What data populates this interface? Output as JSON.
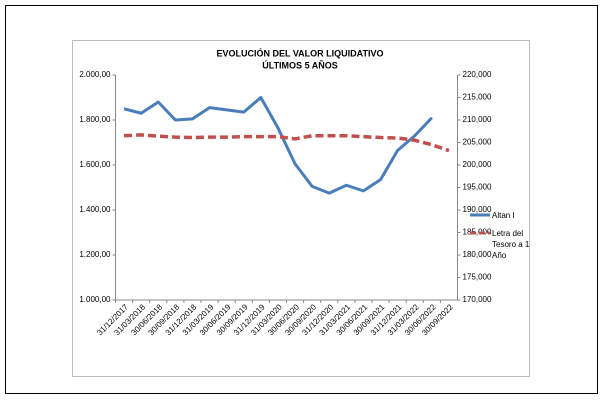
{
  "chart_data": {
    "type": "line",
    "title": "EVOLUCIÓN DEL VALOR LIQUIDATIVO",
    "subtitle": "ÚLTIMOS 5 AÑOS",
    "categories": [
      "31/12/2017",
      "31/03/2018",
      "30/06/2018",
      "30/09/2018",
      "31/12/2018",
      "31/03/2019",
      "30/06/2019",
      "30/09/2019",
      "31/12/2019",
      "31/03/2020",
      "30/06/2020",
      "30/09/2020",
      "31/12/2020",
      "31/03/2021",
      "30/06/2021",
      "30/09/2021",
      "31/12/2021",
      "31/03/2022",
      "30/06/2022",
      "30/09/2022"
    ],
    "series": [
      {
        "name": "Altan I",
        "color": "#4a7ebb",
        "axis": "y",
        "dashed": false,
        "values": [
          1850,
          1830,
          1880,
          1800,
          1805,
          1855,
          1845,
          1835,
          1900,
          1765,
          1605,
          1505,
          1475,
          1510,
          1485,
          1535,
          1665,
          1730,
          1810,
          null
        ]
      },
      {
        "name": "Letra del Tesoro a 1 Año",
        "color": "#c0504d",
        "axis": "y2",
        "dashed": true,
        "values": [
          206500,
          206700,
          206400,
          206200,
          206100,
          206200,
          206200,
          206300,
          206300,
          206300,
          205800,
          206500,
          206500,
          206500,
          206300,
          206100,
          206000,
          205500,
          204500,
          203200
        ]
      }
    ],
    "ylim": [
      1000,
      2000
    ],
    "yticks": [
      {
        "value": 1000,
        "label": "1.000,00"
      },
      {
        "value": 1200,
        "label": "1.200,00"
      },
      {
        "value": 1400,
        "label": "1.400,00"
      },
      {
        "value": 1600,
        "label": "1.600,00"
      },
      {
        "value": 1800,
        "label": "1.800,00"
      },
      {
        "value": 2000,
        "label": "2.000,00"
      }
    ],
    "y2lim": [
      170000,
      220000
    ],
    "y2ticks": [
      {
        "value": 170000,
        "label": "170,000"
      },
      {
        "value": 175000,
        "label": "175,000"
      },
      {
        "value": 180000,
        "label": "180,000"
      },
      {
        "value": 185000,
        "label": "185,000"
      },
      {
        "value": 190000,
        "label": "190,000"
      },
      {
        "value": 195000,
        "label": "195,000"
      },
      {
        "value": 200000,
        "label": "200,000"
      },
      {
        "value": 205000,
        "label": "205,000"
      },
      {
        "value": 210000,
        "label": "210,000"
      },
      {
        "value": 215000,
        "label": "215,000"
      },
      {
        "value": 220000,
        "label": "220,000"
      }
    ]
  }
}
